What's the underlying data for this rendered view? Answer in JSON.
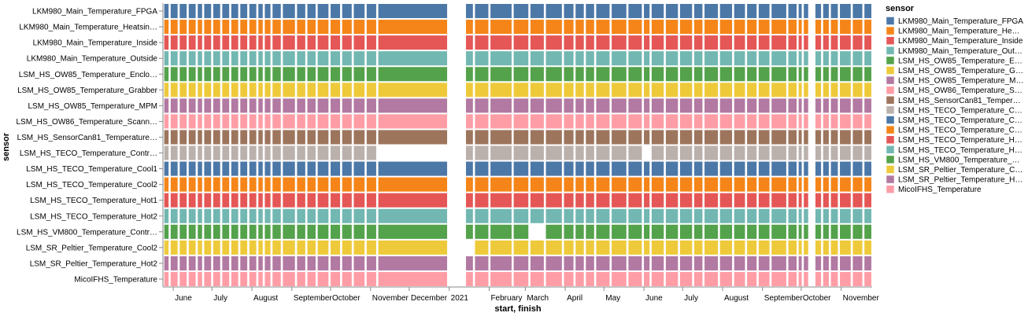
{
  "chart_data": {
    "type": "gantt",
    "xlabel": "start, finish",
    "ylabel": "sensor",
    "legend": {
      "title": "sensor",
      "position": "right"
    },
    "x_ticks": [
      "June",
      "July",
      "August",
      "September",
      "October",
      "November",
      "December",
      "2021",
      "February",
      "March",
      "April",
      "May",
      "June",
      "July",
      "August",
      "September",
      "October",
      "November"
    ],
    "x_range": [
      "2020-05-24",
      "2021-11-25"
    ],
    "sensors": [
      "LKM980_Main_Temperature_FPGA",
      "LKM980_Main_Temperature_Heatsink",
      "LKM980_Main_Temperature_Inside",
      "LKM980_Main_Temperature_Outside",
      "LSM_HS_OW85_Temperature_Enclosure",
      "LSM_HS_OW85_Temperature_Grabber",
      "LSM_HS_OW85_Temperature_MPM",
      "LSM_HS_OW86_Temperature_Scanner",
      "LSM_HS_SensorCan81_Temperature",
      "LSM_HS_TECO_Temperature_Controller",
      "LSM_HS_TECO_Temperature_Cool1",
      "LSM_HS_TECO_Temperature_Cool2",
      "LSM_HS_TECO_Temperature_Hot1",
      "LSM_HS_TECO_Temperature_Hot2",
      "LSM_HS_VM800_Temperature_Controller",
      "LSM_SR_Peltier_Temperature_Cool2",
      "LSM_SR_Peltier_Temperature_Hot2",
      "MicoIFHS_Temperature"
    ],
    "axis_labels": [
      "LKM980_Main_Temperature_FPGA",
      "LKM980_Main_Temperature_Heatsin…",
      "LKM980_Main_Temperature_Inside",
      "LKM980_Main_Temperature_Outside",
      "LSM_HS_OW85_Temperature_Enclo…",
      "LSM_HS_OW85_Temperature_Grabber",
      "LSM_HS_OW85_Temperature_MPM",
      "LSM_HS_OW86_Temperature_Scann…",
      "LSM_HS_SensorCan81_Temperature…",
      "LSM_HS_TECO_Temperature_Contr…",
      "LSM_HS_TECO_Temperature_Cool1",
      "LSM_HS_TECO_Temperature_Cool2",
      "LSM_HS_TECO_Temperature_Hot1",
      "LSM_HS_TECO_Temperature_Hot2",
      "LSM_HS_VM800_Temperature_Contr…",
      "LSM_SR_Peltier_Temperature_Cool2",
      "LSM_SR_Peltier_Temperature_Hot2",
      "MicoIFHS_Temperature"
    ],
    "legend_labels": [
      "LKM980_Main_Temperature_FPGA",
      "LKM980_Main_Temperature_He…",
      "LKM980_Main_Temperature_Inside",
      "LKM980_Main_Temperature_Out…",
      "LSM_HS_OW85_Temperature_E…",
      "LSM_HS_OW85_Temperature_G…",
      "LSM_HS_OW85_Temperature_M…",
      "LSM_HS_OW86_Temperature_S…",
      "LSM_HS_SensorCan81_Temper…",
      "LSM_HS_TECO_Temperature_C…",
      "LSM_HS_TECO_Temperature_C…",
      "LSM_HS_TECO_Temperature_C…",
      "LSM_HS_TECO_Temperature_H…",
      "LSM_HS_TECO_Temperature_H…",
      "LSM_HS_VM800_Temperature_…",
      "LSM_SR_Peltier_Temperature_C…",
      "LSM_SR_Peltier_Temperature_H…",
      "MicoIFHS_Temperature"
    ],
    "colors": [
      "#4c78a8",
      "#f58518",
      "#e45756",
      "#72b7b2",
      "#54a24b",
      "#eeca3b",
      "#b279a2",
      "#ff9da6",
      "#9d755d",
      "#bab0ac",
      "#4c78a8",
      "#f58518",
      "#e45756",
      "#72b7b2",
      "#54a24b",
      "#eeca3b",
      "#b279a2",
      "#ff9da6"
    ],
    "segments": [
      [
        "2020-05-25",
        "2020-05-29"
      ],
      [
        "2020-05-30",
        "2020-06-05"
      ],
      [
        "2020-06-06",
        "2020-06-12"
      ],
      [
        "2020-06-13",
        "2020-06-19"
      ],
      [
        "2020-06-20",
        "2020-06-24"
      ],
      [
        "2020-06-25",
        "2020-07-01"
      ],
      [
        "2020-07-02",
        "2020-07-08"
      ],
      [
        "2020-07-09",
        "2020-07-15"
      ],
      [
        "2020-07-16",
        "2020-07-22"
      ],
      [
        "2020-07-23",
        "2020-07-29"
      ],
      [
        "2020-07-30",
        "2020-08-05"
      ],
      [
        "2020-08-06",
        "2020-08-10"
      ],
      [
        "2020-08-11",
        "2020-08-16"
      ],
      [
        "2020-08-17",
        "2020-08-24"
      ],
      [
        "2020-08-25",
        "2020-09-04"
      ],
      [
        "2020-09-05",
        "2020-09-12"
      ],
      [
        "2020-09-13",
        "2020-09-20"
      ],
      [
        "2020-09-21",
        "2020-09-30"
      ],
      [
        "2020-10-01",
        "2020-10-09"
      ],
      [
        "2020-10-10",
        "2020-10-18"
      ],
      [
        "2020-10-19",
        "2020-10-28"
      ],
      [
        "2020-10-29",
        "2020-11-06"
      ],
      [
        "2020-11-07",
        "2020-12-31"
      ],
      [
        "2021-01-14",
        "2021-01-20"
      ],
      [
        "2021-01-21",
        "2021-02-01"
      ],
      [
        "2021-02-02",
        "2021-02-19"
      ],
      [
        "2021-02-20",
        "2021-03-04"
      ],
      [
        "2021-03-05",
        "2021-03-16"
      ],
      [
        "2021-03-17",
        "2021-03-30"
      ],
      [
        "2021-03-31",
        "2021-04-08"
      ],
      [
        "2021-04-09",
        "2021-04-16"
      ],
      [
        "2021-04-17",
        "2021-04-24"
      ],
      [
        "2021-04-25",
        "2021-05-06"
      ],
      [
        "2021-05-07",
        "2021-05-19"
      ],
      [
        "2021-05-20",
        "2021-05-31"
      ],
      [
        "2021-06-01",
        "2021-06-06"
      ],
      [
        "2021-06-07",
        "2021-06-17"
      ],
      [
        "2021-06-18",
        "2021-06-28"
      ],
      [
        "2021-06-29",
        "2021-07-09"
      ],
      [
        "2021-07-10",
        "2021-07-17"
      ],
      [
        "2021-07-18",
        "2021-07-29"
      ],
      [
        "2021-07-30",
        "2021-08-09"
      ],
      [
        "2021-08-10",
        "2021-08-19"
      ],
      [
        "2021-08-20",
        "2021-08-28"
      ],
      [
        "2021-08-29",
        "2021-09-07"
      ],
      [
        "2021-09-08",
        "2021-09-20"
      ],
      [
        "2021-09-21",
        "2021-09-28"
      ],
      [
        "2021-09-29",
        "2021-10-02"
      ],
      [
        "2021-10-03",
        "2021-10-07"
      ],
      [
        "2021-10-12",
        "2021-10-17"
      ],
      [
        "2021-10-18",
        "2021-10-23"
      ],
      [
        "2021-10-24",
        "2021-10-30"
      ],
      [
        "2021-10-31",
        "2021-11-09"
      ],
      [
        "2021-11-10",
        "2021-11-18"
      ],
      [
        "2021-11-19",
        "2021-11-25"
      ]
    ],
    "missing_segments": {
      "LSM_HS_TECO_Temperature_Controller": [
        [
          "2020-11-07",
          "2020-12-31"
        ],
        [
          "2021-06-01",
          "2021-06-06"
        ]
      ],
      "LSM_HS_VM800_Temperature_Controller": [
        [
          "2021-03-05",
          "2021-03-16"
        ]
      ],
      "LSM_SR_Peltier_Temperature_Cool2": [
        [
          "2021-01-14",
          "2021-01-20"
        ]
      ]
    }
  }
}
